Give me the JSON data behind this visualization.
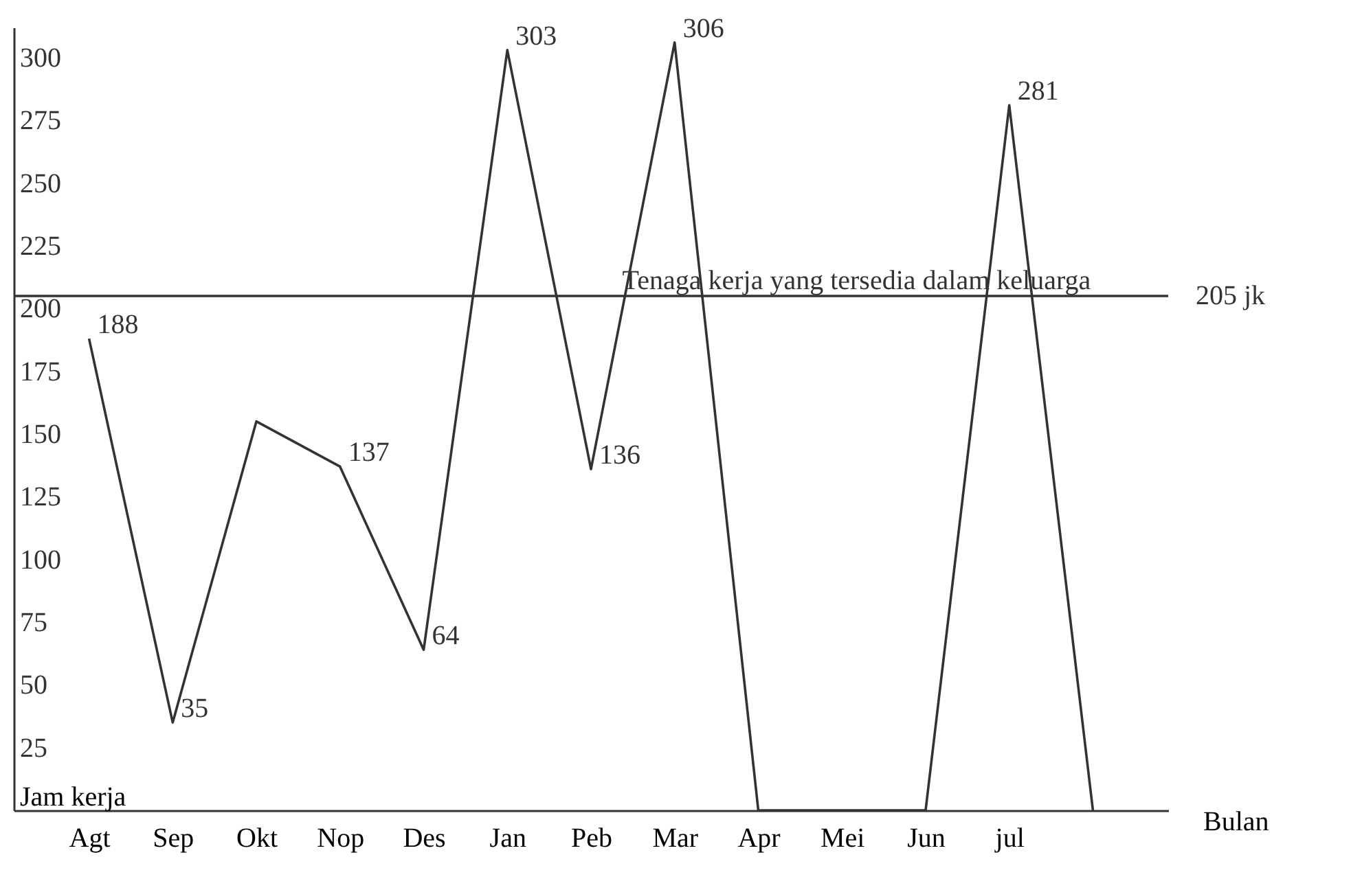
{
  "chart_data": {
    "type": "line",
    "xlabel": "Bulan",
    "ylabel": "Jam kerja",
    "categories": [
      "Agt",
      "Sep",
      "Okt",
      "Nop",
      "Des",
      "Jan",
      "Peb",
      "Mar",
      "Apr",
      "Mei",
      "Jun",
      "jul",
      null
    ],
    "series": [
      {
        "color": "#333333",
        "values": [
          188,
          35,
          155,
          137,
          64,
          303,
          136,
          306,
          0,
          0,
          0,
          281,
          0
        ],
        "value_labels": [
          "188",
          "35",
          null,
          "137",
          "64",
          "303",
          "136",
          "306",
          null,
          null,
          null,
          "281",
          null
        ]
      }
    ],
    "ylim": [
      0,
      312
    ],
    "yticks": [
      25,
      50,
      75,
      100,
      125,
      150,
      175,
      200,
      225,
      250,
      275,
      300
    ],
    "ref_lines": [
      {
        "axis": "y",
        "value": 205,
        "label": "205 jk",
        "color": "#333333"
      }
    ],
    "annotations": [
      {
        "text": "Tenaga kerja yang tersedia dalam keluarga",
        "y": 205
      }
    ],
    "grid": false,
    "marker": "none"
  }
}
